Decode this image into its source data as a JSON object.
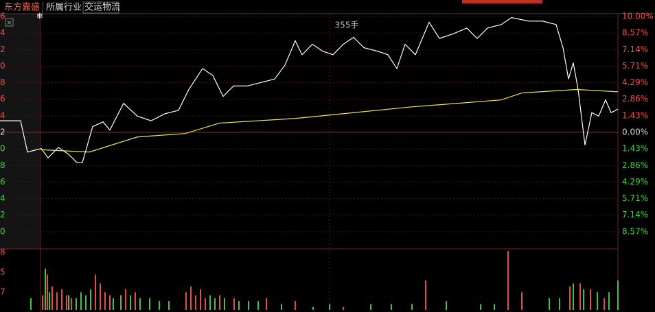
{
  "tabs": [
    "东方嘉盛",
    "所属行业",
    "交运物流"
  ],
  "chart_data": {
    "type": "line",
    "annotation": "355手",
    "xlim": [
      0,
      900
    ],
    "ylim": [
      -10,
      10
    ],
    "yticks": [
      {
        "value": 10,
        "label": "10.00%"
      },
      {
        "value": 8.57,
        "label": "8.57%"
      },
      {
        "value": 7.14,
        "label": "7.14%"
      },
      {
        "value": 5.71,
        "label": "5.71%"
      },
      {
        "value": 4.29,
        "label": "4.29%"
      },
      {
        "value": 2.86,
        "label": "2.86%"
      },
      {
        "value": 1.43,
        "label": "1.43%"
      },
      {
        "value": 0,
        "label": "0.00%"
      },
      {
        "value": -1.43,
        "label": "1.43%"
      },
      {
        "value": -2.86,
        "label": "2.86%"
      },
      {
        "value": -4.29,
        "label": "4.29%"
      },
      {
        "value": -5.71,
        "label": "5.71%"
      },
      {
        "value": -7.14,
        "label": "7.14%"
      },
      {
        "value": -8.57,
        "label": "8.57%"
      }
    ],
    "left_tick_labels": [
      "6",
      "4",
      "2",
      "0",
      "8",
      "6",
      "4",
      "2",
      "0",
      "8",
      "6",
      "4",
      "2",
      "0"
    ],
    "grid": true,
    "series": [
      {
        "name": "price",
        "color": "#ffffff",
        "x": [
          0,
          30,
          40,
          60,
          70,
          85,
          100,
          112,
          120,
          135,
          150,
          160,
          180,
          200,
          220,
          240,
          260,
          275,
          295,
          310,
          325,
          340,
          360,
          380,
          400,
          415,
          430,
          440,
          455,
          470,
          485,
          500,
          515,
          530,
          550,
          565,
          578,
          590,
          605,
          625,
          640,
          660,
          680,
          695,
          710,
          730,
          745,
          770,
          790,
          810,
          820,
          828,
          835,
          842,
          852,
          862,
          872,
          882,
          890,
          900
        ],
        "values": [
          1.0,
          1.0,
          -1.7,
          -1.4,
          -2.2,
          -1.3,
          -1.9,
          -2.6,
          -2.6,
          0.5,
          0.9,
          0.2,
          2.5,
          1.4,
          1.0,
          1.6,
          1.9,
          3.7,
          5.5,
          4.9,
          3.1,
          4.0,
          4.0,
          4.3,
          4.6,
          5.8,
          7.9,
          6.7,
          7.6,
          7.0,
          6.7,
          7.6,
          8.2,
          7.3,
          7.0,
          6.7,
          5.5,
          7.6,
          6.7,
          9.5,
          8.1,
          8.5,
          9.0,
          8.1,
          9.0,
          9.3,
          9.9,
          9.6,
          9.6,
          9.3,
          7.3,
          4.6,
          6.0,
          3.7,
          -1.1,
          1.7,
          1.4,
          2.8,
          1.7,
          2.0
        ]
      },
      {
        "name": "average",
        "color": "#e8e84a",
        "x": [
          60,
          130,
          200,
          270,
          320,
          430,
          600,
          730,
          760,
          840,
          900
        ],
        "values": [
          -1.5,
          -1.7,
          -0.4,
          -0.1,
          0.8,
          1.2,
          2.2,
          2.8,
          3.4,
          3.7,
          3.5
        ]
      }
    ],
    "volume": {
      "ylim": [
        0,
        100
      ],
      "tick_labels": [
        "8",
        "5",
        "7"
      ],
      "series": [
        {
          "name": "up",
          "color": "#e84a4a",
          "x": [
            62,
            69,
            76,
            83,
            90,
            97,
            104,
            139,
            146,
            153,
            160,
            183,
            197,
            271,
            278,
            285,
            292,
            299,
            320,
            341,
            388,
            430,
            500,
            620,
            740,
            760,
            830,
            845,
            860,
            880
          ],
          "values": [
            25,
            60,
            40,
            30,
            35,
            25,
            20,
            60,
            45,
            30,
            25,
            35,
            30,
            30,
            40,
            25,
            35,
            20,
            25,
            20,
            20,
            15,
            5,
            50,
            100,
            30,
            40,
            45,
            35,
            20
          ]
        },
        {
          "name": "down",
          "color": "#3ec43e",
          "x": [
            45,
            66,
            72,
            100,
            111,
            118,
            125,
            132,
            165,
            176,
            190,
            204,
            218,
            232,
            246,
            306,
            313,
            327,
            348,
            362,
            376,
            410,
            456,
            480,
            540,
            570,
            600,
            650,
            700,
            720,
            800,
            815,
            835,
            850,
            870,
            887,
            900
          ],
          "values": [
            20,
            70,
            30,
            25,
            20,
            30,
            25,
            35,
            20,
            25,
            25,
            20,
            20,
            15,
            15,
            25,
            20,
            20,
            15,
            15,
            15,
            10,
            5,
            10,
            10,
            10,
            10,
            15,
            10,
            10,
            20,
            20,
            45,
            35,
            30,
            30,
            50
          ]
        }
      ]
    }
  }
}
